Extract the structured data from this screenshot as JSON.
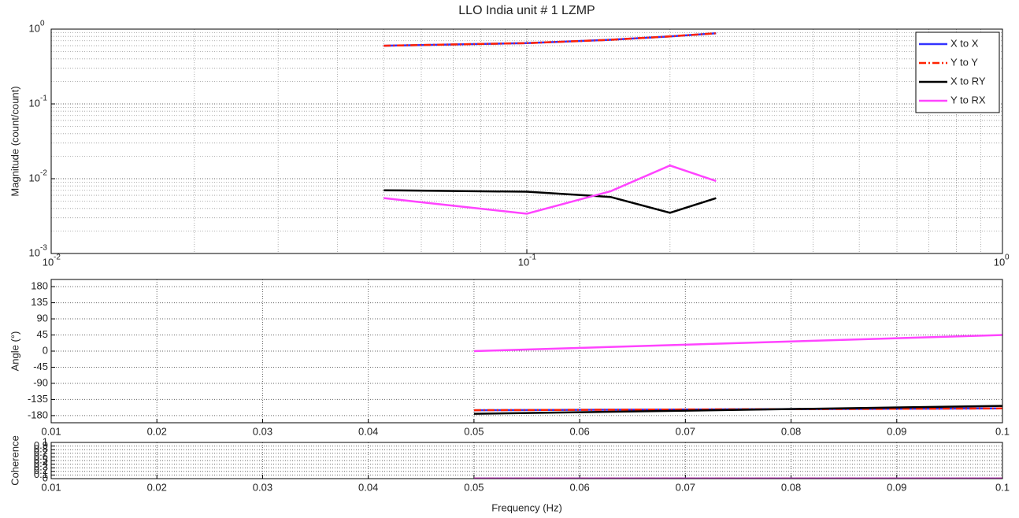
{
  "chart_data": [
    {
      "type": "line",
      "title": "LLO India unit # 1 LZMP",
      "ylabel": "Magnitude (count/count)",
      "xlog": true,
      "ylog": true,
      "grid": true,
      "legend": "northeast",
      "xlim": [
        0.01,
        1
      ],
      "ylim": [
        0.001,
        1
      ],
      "xticks": [
        {
          "value": 0.01,
          "label": "10",
          "sup": "-2"
        },
        {
          "value": 0.1,
          "label": "10",
          "sup": "-1"
        },
        {
          "value": 1,
          "label": "10",
          "sup": "0"
        }
      ],
      "yticks": [
        {
          "value": 0.001,
          "label": "10",
          "sup": "-3"
        },
        {
          "value": 0.01,
          "label": "10",
          "sup": "-2"
        },
        {
          "value": 0.1,
          "label": "10",
          "sup": "-1"
        },
        {
          "value": 1,
          "label": "10",
          "sup": "0"
        }
      ],
      "x": [
        0.05,
        0.1,
        0.15,
        0.2,
        0.25
      ],
      "series": [
        {
          "name": "X to X",
          "color": "#3333ff",
          "linestyle": "-",
          "values": [
            0.6,
            0.65,
            0.72,
            0.8,
            0.88
          ]
        },
        {
          "name": "Y to Y",
          "color": "#ff2200",
          "linestyle": "-.",
          "values": [
            0.6,
            0.65,
            0.72,
            0.8,
            0.88
          ]
        },
        {
          "name": "X to RY",
          "color": "#000000",
          "linestyle": "-",
          "values": [
            0.007,
            0.0067,
            0.0057,
            0.0035,
            0.0055
          ]
        },
        {
          "name": "Y to RX",
          "color": "#ff44ff",
          "linestyle": "-",
          "values": [
            0.0055,
            0.0034,
            0.0068,
            0.015,
            0.0093
          ]
        }
      ]
    },
    {
      "type": "line",
      "ylabel": "Angle (°)",
      "xlog": false,
      "ylog": false,
      "grid": true,
      "xlim": [
        0.01,
        0.1
      ],
      "ylim": [
        -200,
        200
      ],
      "xticks": [
        0.01,
        0.02,
        0.03,
        0.04,
        0.05,
        0.06,
        0.07,
        0.08,
        0.09,
        0.1
      ],
      "yticks": [
        -180,
        -135,
        -90,
        -45,
        0,
        45,
        90,
        135,
        180
      ],
      "x": [
        0.05,
        0.1
      ],
      "series": [
        {
          "color": "#3333ff",
          "linestyle": "-",
          "values": [
            -165,
            -160
          ]
        },
        {
          "color": "#ff2200",
          "linestyle": "-.",
          "values": [
            -165,
            -160
          ]
        },
        {
          "color": "#000000",
          "linestyle": "-",
          "values": [
            -175,
            -153
          ]
        },
        {
          "color": "#ff44ff",
          "linestyle": "-",
          "values": [
            0,
            45
          ]
        }
      ]
    },
    {
      "type": "line",
      "ylabel": "Coherence",
      "xlabel": "Frequency (Hz)",
      "xlog": false,
      "ylog": false,
      "grid": true,
      "xlim": [
        0.01,
        0.1
      ],
      "ylim": [
        0,
        1
      ],
      "xticks": [
        0.01,
        0.02,
        0.03,
        0.04,
        0.05,
        0.06,
        0.07,
        0.08,
        0.09,
        0.1
      ],
      "yticks": [
        0,
        0.1,
        0.2,
        0.3,
        0.4,
        0.5,
        0.6,
        0.7,
        0.8,
        0.9,
        1
      ],
      "x": [
        0.05,
        0.1
      ],
      "series": [
        {
          "color": "#3333ff",
          "linestyle": "-",
          "values": [
            0,
            0
          ]
        },
        {
          "color": "#ff2200",
          "linestyle": "-.",
          "values": [
            0,
            0
          ]
        },
        {
          "color": "#000000",
          "linestyle": "-",
          "values": [
            0,
            0
          ]
        },
        {
          "color": "#ff44ff",
          "linestyle": "-",
          "values": [
            0,
            0
          ]
        }
      ]
    }
  ]
}
